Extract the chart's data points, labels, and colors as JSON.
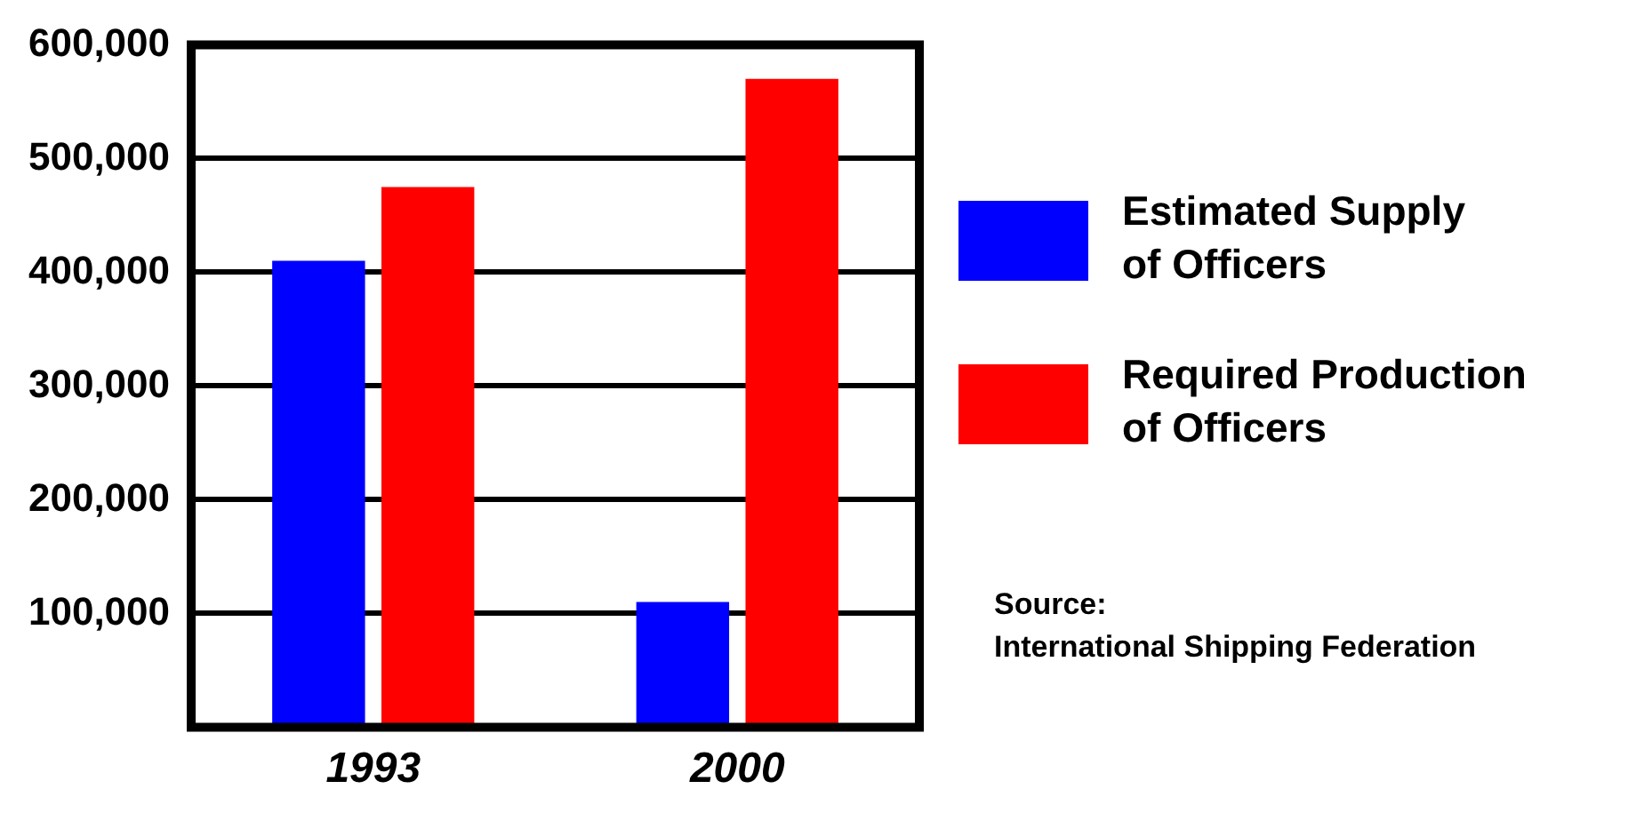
{
  "chart_data": {
    "type": "bar",
    "categories": [
      "1993",
      "2000"
    ],
    "series": [
      {
        "name": "Estimated Supply of Officers",
        "color": "#0000ff",
        "values": [
          410000,
          110000
        ]
      },
      {
        "name": "Required Production of Officers",
        "color": "#ff0000",
        "values": [
          475000,
          570000
        ]
      }
    ],
    "ylim": [
      0,
      600000
    ],
    "yticks": [
      {
        "value": 100000,
        "label": "100,000"
      },
      {
        "value": 200000,
        "label": "200,000"
      },
      {
        "value": 300000,
        "label": "300,000"
      },
      {
        "value": 400000,
        "label": "400,000"
      },
      {
        "value": 500000,
        "label": "500,000"
      },
      {
        "value": 600000,
        "label": "600,000"
      }
    ],
    "grid": "y",
    "legend": "right",
    "annotations": [
      "Source:",
      "International Shipping Federation"
    ]
  }
}
